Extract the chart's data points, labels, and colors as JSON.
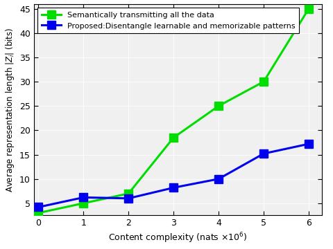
{
  "x": [
    0,
    1,
    2,
    3,
    4,
    5,
    6
  ],
  "green_y": [
    3.0,
    5.0,
    7.0,
    18.5,
    25.0,
    30.0,
    45.0
  ],
  "blue_y": [
    4.2,
    6.2,
    6.0,
    8.2,
    10.0,
    15.2,
    17.2
  ],
  "green_color": "#00DD00",
  "blue_color": "#0000EE",
  "green_label": "Semantically transmitting all the data",
  "blue_label": "Proposed:Disentangle learnable and memorizable patterns",
  "xlabel": "Content complexity (nats $\\times10^{6}$)",
  "ylabel": "Average representation length $|Z_i|$ (bits)",
  "xlim": [
    -0.1,
    6.3
  ],
  "ylim": [
    2.5,
    46
  ],
  "yticks": [
    5,
    10,
    15,
    20,
    25,
    30,
    35,
    40,
    45
  ],
  "xticks": [
    0,
    1,
    2,
    3,
    4,
    5,
    6
  ],
  "grid": true,
  "linewidth": 2.2,
  "markersize": 8,
  "bg_color": "#f0f0f0"
}
